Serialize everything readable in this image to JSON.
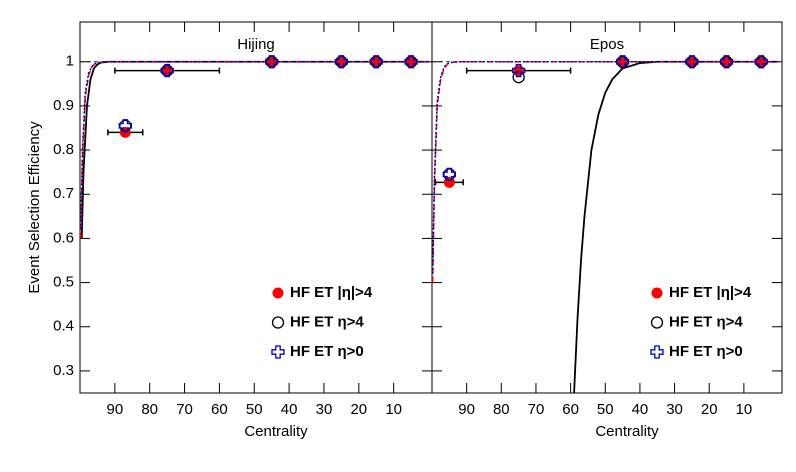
{
  "chart_data": [
    {
      "type": "scatter",
      "title": "Hijing",
      "ylabel": "Event Selection Efficiency",
      "xlabel": "Centrality",
      "xlim": [
        100,
        -1
      ],
      "ylim": [
        0.25,
        1.09
      ],
      "xticks": [
        90,
        80,
        70,
        60,
        50,
        40,
        30,
        20,
        10
      ],
      "yticks": [
        0.3,
        0.4,
        0.5,
        0.6,
        0.7,
        0.8,
        0.9,
        1
      ],
      "show_ytick_labels": true,
      "hline": 1,
      "x": [
        87,
        75,
        45,
        25,
        15,
        5
      ],
      "xerr": [
        5,
        15,
        0,
        0,
        0,
        0
      ],
      "series": [
        {
          "name": "HF ET |η|>4",
          "color": "#ff0000",
          "marker": "filled-circle",
          "values": [
            0.84,
            0.98,
            1,
            1,
            1,
            1
          ]
        },
        {
          "name": "HF ET η>4",
          "color": "#000000",
          "marker": "open-circle",
          "values": [
            0.855,
            0.98,
            1,
            1,
            1,
            1
          ]
        },
        {
          "name": "HF ET η>0",
          "color": "#0000cc",
          "marker": "open-cross",
          "values": [
            0.855,
            0.98,
            1,
            1,
            1,
            1
          ]
        }
      ],
      "curves": [
        {
          "color": "#000000",
          "dash": "solid",
          "x": [
            99.5,
            99,
            98,
            97,
            96,
            95,
            94,
            92,
            90,
            0
          ],
          "y": [
            0.6,
            0.75,
            0.9,
            0.96,
            0.985,
            0.994,
            0.998,
            1,
            1,
            1
          ]
        },
        {
          "color": "#ff0000",
          "dash": "dashed",
          "x": [
            99.8,
            99.3,
            98.5,
            97.5,
            96.5,
            95.5,
            94,
            92,
            0
          ],
          "y": [
            0.6,
            0.78,
            0.92,
            0.97,
            0.99,
            0.996,
            0.999,
            1,
            1
          ]
        },
        {
          "color": "#0000cc",
          "dash": "dotted",
          "x": [
            99.8,
            99.3,
            98.5,
            97.5,
            96.5,
            95.5,
            94,
            92,
            0
          ],
          "y": [
            0.62,
            0.8,
            0.93,
            0.975,
            0.99,
            0.997,
            0.999,
            1,
            1
          ]
        }
      ]
    },
    {
      "type": "scatter",
      "title": "Epos",
      "xlabel": "Centrality",
      "xlim": [
        100,
        -1
      ],
      "ylim": [
        0.25,
        1.09
      ],
      "xticks": [
        90,
        80,
        70,
        60,
        50,
        40,
        30,
        20,
        10
      ],
      "yticks": [
        0.3,
        0.4,
        0.5,
        0.6,
        0.7,
        0.8,
        0.9,
        1
      ],
      "show_ytick_labels": false,
      "hline": 1,
      "x": [
        95,
        75,
        45,
        25,
        15,
        5
      ],
      "xerr": [
        4,
        15,
        0,
        0,
        0,
        0
      ],
      "series": [
        {
          "name": "HF ET |η|>4",
          "color": "#ff0000",
          "marker": "filled-circle",
          "values": [
            0.727,
            0.98,
            1,
            1,
            1,
            1
          ]
        },
        {
          "name": "HF ET η>4",
          "color": "#000000",
          "marker": "open-circle",
          "values": [
            0.745,
            0.965,
            1,
            1,
            1,
            1
          ]
        },
        {
          "name": "HF ET η>0",
          "color": "#0000cc",
          "marker": "open-cross",
          "values": [
            0.745,
            0.98,
            1,
            1,
            1,
            1
          ]
        }
      ],
      "curves": [
        {
          "color": "#000000",
          "dash": "solid",
          "x": [
            59,
            58,
            57,
            56,
            54,
            52,
            50,
            48,
            45,
            40,
            35,
            0
          ],
          "y": [
            0.25,
            0.42,
            0.55,
            0.65,
            0.8,
            0.88,
            0.93,
            0.96,
            0.985,
            0.997,
            1,
            1
          ]
        },
        {
          "color": "#ff0000",
          "dash": "dashed",
          "x": [
            99.8,
            99.3,
            98.5,
            97.5,
            96.5,
            95.5,
            94,
            92,
            0
          ],
          "y": [
            0.5,
            0.72,
            0.9,
            0.96,
            0.985,
            0.995,
            0.999,
            1,
            1
          ]
        },
        {
          "color": "#0000cc",
          "dash": "dotted",
          "x": [
            99.8,
            99.3,
            98.5,
            97.5,
            96.5,
            95.5,
            94,
            92,
            0
          ],
          "y": [
            0.52,
            0.74,
            0.91,
            0.965,
            0.988,
            0.996,
            0.999,
            1,
            1
          ]
        }
      ]
    }
  ]
}
